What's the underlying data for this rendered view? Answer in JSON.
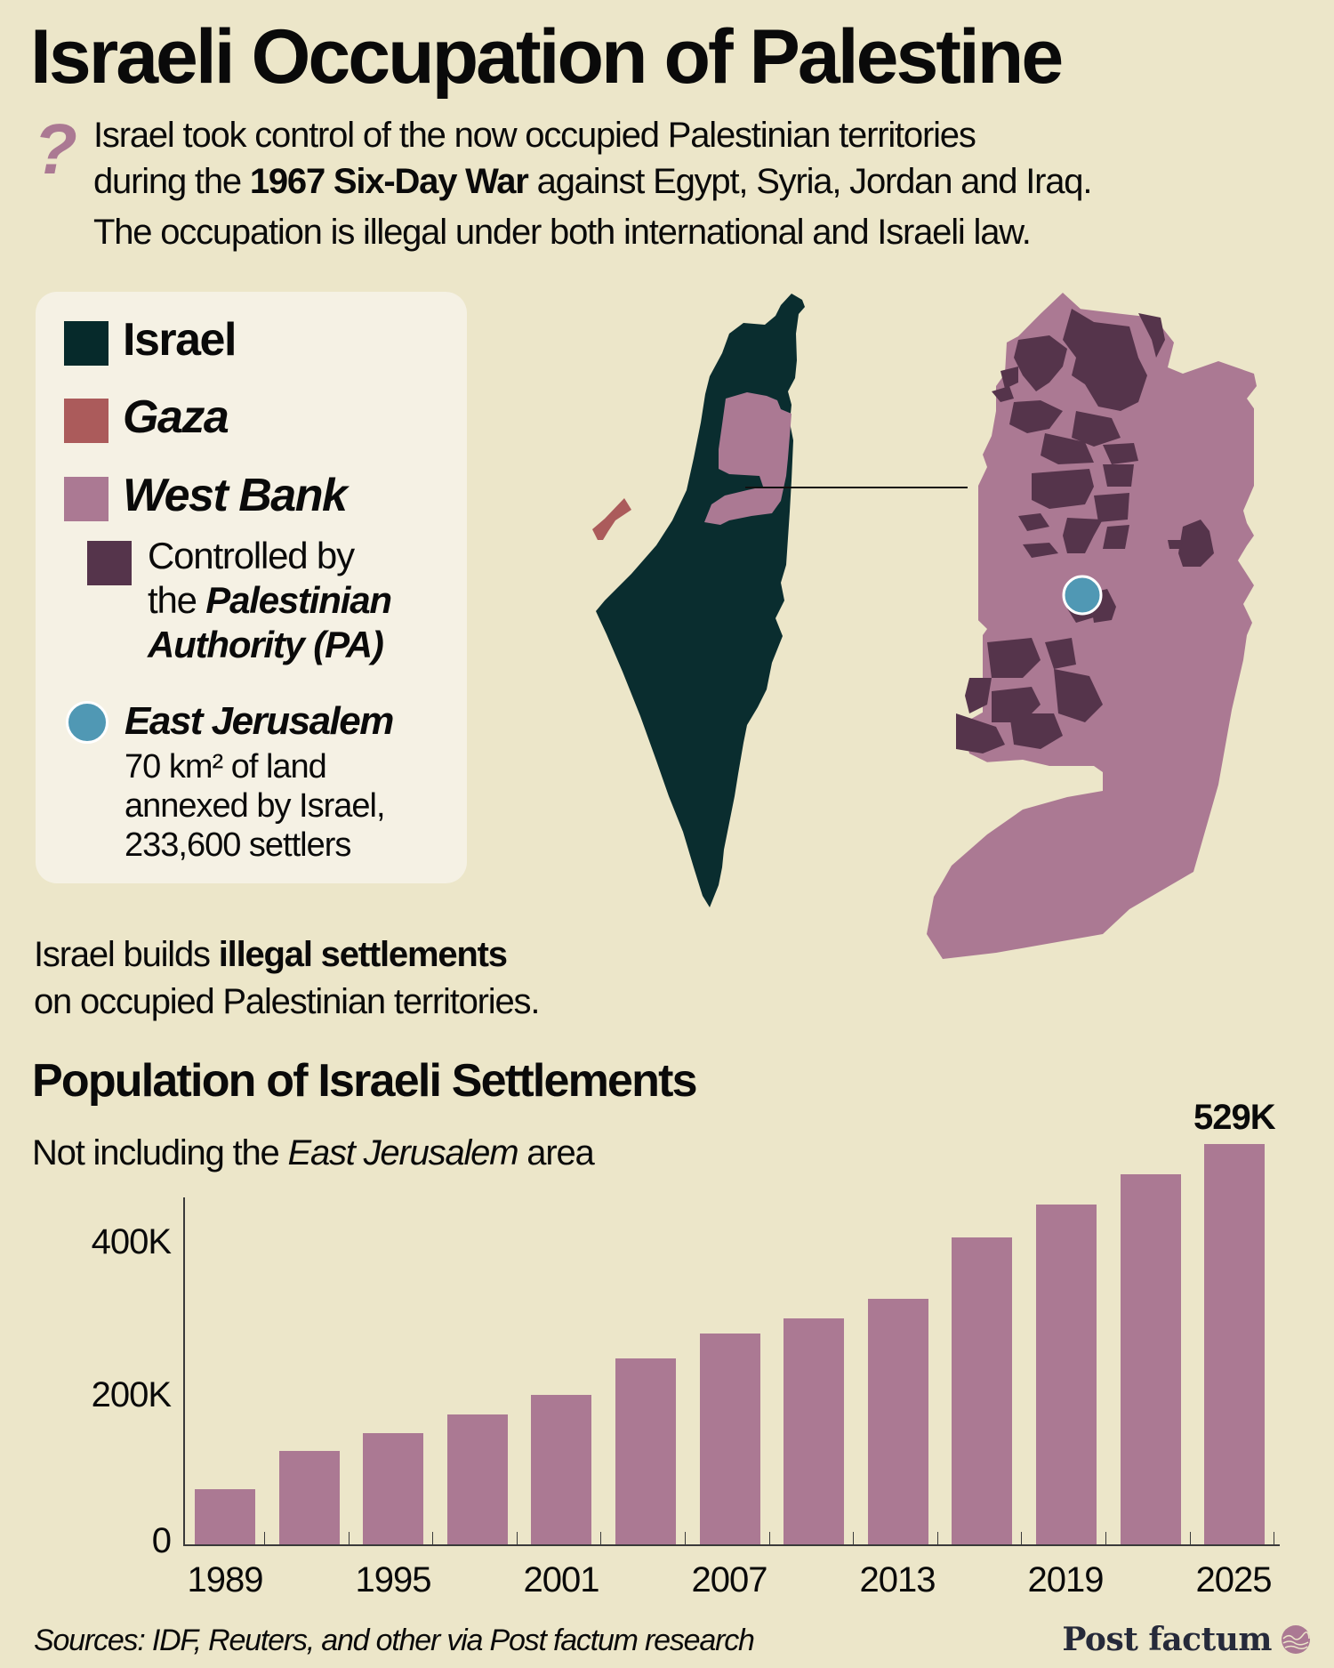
{
  "header": {
    "title": "Israeli Occupation of Palestine",
    "question_icon": "?",
    "intro": {
      "line1": "Israel took control of the now occupied Palestinian territories",
      "line2_pre": "during the ",
      "line2_bold": "1967 Six-Day War",
      "line2_post": " against Egypt, Syria, Jordan and Iraq.",
      "line3": "The occupation is illegal under both international and Israeli law."
    }
  },
  "legend": {
    "items": [
      {
        "label": "Israel",
        "color": "#062a2b"
      },
      {
        "label": "Gaza",
        "color": "#ab5b5b"
      },
      {
        "label": "West Bank",
        "color": "#ab7993"
      }
    ],
    "pa": {
      "color": "#55344b",
      "line1": "Controlled by",
      "line2_pre": "the ",
      "line2_bold": "Palestinian",
      "line3_bold": "Authority (PA)"
    },
    "east_jerusalem": {
      "color": "#5098b4",
      "label": "East Jerusalem",
      "detail_line1": "70 km² of land",
      "detail_line2": "annexed by Israel,",
      "detail_line3": "233,600 settlers"
    }
  },
  "maps": {
    "israel_color": "#0a2d2f",
    "gaza_color": "#ab5b5b",
    "west_bank_color": "#ab7993",
    "pa_color": "#55344b",
    "east_jerusalem_color": "#5098b4"
  },
  "settlements_note": {
    "pre": "Israel builds ",
    "bold": "illegal settlements",
    "line2": "on occupied Palestinian territories."
  },
  "chart": {
    "title": "Population of Israeli Settlements",
    "subtitle_pre": "Not including the ",
    "subtitle_italic": "East Jerusalem",
    "subtitle_post": " area",
    "peak_label": "529K",
    "y_ticks": [
      "400K",
      "200K",
      "0"
    ],
    "x_labels": [
      "1989",
      "1995",
      "2001",
      "2007",
      "2013",
      "2019",
      "2025"
    ],
    "bar_color": "#ab7993"
  },
  "chart_data": {
    "type": "bar",
    "title": "Population of Israeli Settlements",
    "subtitle": "Not including the East Jerusalem area",
    "categories": [
      "1989",
      "1992",
      "1995",
      "1998",
      "2001",
      "2004",
      "2007",
      "2010",
      "2013",
      "2016",
      "2019",
      "2022",
      "2025"
    ],
    "values": [
      73000,
      123000,
      147000,
      172000,
      198000,
      246000,
      279000,
      299000,
      325000,
      406000,
      449000,
      490000,
      529000
    ],
    "xlabel": "",
    "ylabel": "",
    "y_tick_labels": [
      "0",
      "200K",
      "400K"
    ],
    "x_tick_labels_shown": [
      "1989",
      "1995",
      "2001",
      "2007",
      "2013",
      "2019",
      "2025"
    ],
    "annotations": [
      {
        "category": "2025",
        "text": "529K"
      }
    ],
    "ylim": [
      0,
      560000
    ],
    "grid": false,
    "legend": null
  },
  "footer": {
    "sources": "Sources: IDF, Reuters, and other via Post factum research",
    "brand": "Post factum"
  }
}
